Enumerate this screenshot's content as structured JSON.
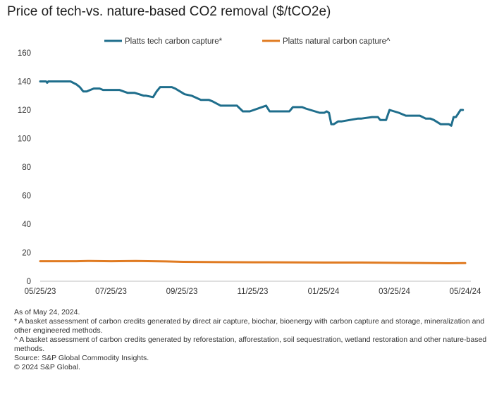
{
  "title": "Price of tech-vs. nature-based CO2 removal ($/tCO2e)",
  "chart_data": {
    "type": "line",
    "title": "Price of tech-vs. nature-based CO2 removal ($/tCO2e)",
    "xlabel": "",
    "ylabel": "",
    "x_ticks": [
      "05/25/23",
      "07/25/23",
      "09/25/23",
      "11/25/23",
      "01/25/24",
      "03/25/24",
      "05/24/24"
    ],
    "x_range": [
      "2023-05-25",
      "2024-05-24"
    ],
    "ylim": [
      0,
      160
    ],
    "y_ticks": [
      0,
      20,
      40,
      60,
      80,
      100,
      120,
      140,
      160
    ],
    "grid": false,
    "legend": "top-center",
    "series": [
      {
        "name": "Platts tech carbon capture*",
        "color": "#1f6e8c",
        "x": [
          "2023-05-25",
          "2023-05-30",
          "2023-05-31",
          "2023-06-01",
          "2023-06-20",
          "2023-06-25",
          "2023-06-28",
          "2023-07-01",
          "2023-07-04",
          "2023-07-07",
          "2023-07-10",
          "2023-07-15",
          "2023-07-18",
          "2023-08-01",
          "2023-08-08",
          "2023-08-12",
          "2023-08-14",
          "2023-08-18",
          "2023-08-22",
          "2023-08-24",
          "2023-08-30",
          "2023-09-02",
          "2023-09-05",
          "2023-09-15",
          "2023-09-18",
          "2023-09-26",
          "2023-10-02",
          "2023-10-10",
          "2023-10-17",
          "2023-10-20",
          "2023-10-27",
          "2023-11-05",
          "2023-11-10",
          "2023-11-15",
          "2023-11-19",
          "2023-11-21",
          "2023-12-05",
          "2023-12-08",
          "2023-12-25",
          "2023-12-28",
          "2024-01-02",
          "2024-01-05",
          "2024-01-08",
          "2024-01-20",
          "2024-01-24",
          "2024-01-26",
          "2024-01-28",
          "2024-01-30",
          "2024-02-01",
          "2024-02-05",
          "2024-02-08",
          "2024-02-22",
          "2024-02-25",
          "2024-03-05",
          "2024-03-10",
          "2024-03-12",
          "2024-03-17",
          "2024-03-20",
          "2024-03-28",
          "2024-04-03",
          "2024-04-15",
          "2024-04-20",
          "2024-04-24",
          "2024-04-27",
          "2024-05-03",
          "2024-05-04",
          "2024-05-06",
          "2024-05-10",
          "2024-05-12",
          "2024-05-14",
          "2024-05-16",
          "2024-05-20",
          "2024-05-22"
        ],
        "values": [
          140,
          140,
          139,
          140,
          140,
          138,
          136,
          133,
          133,
          134,
          135,
          135,
          134,
          134,
          132,
          132,
          132,
          131,
          130,
          130,
          129,
          133,
          136,
          136,
          135,
          131,
          130,
          127,
          127,
          126,
          123,
          123,
          123,
          119,
          119,
          119,
          123,
          119,
          119,
          122,
          122,
          122,
          121,
          118,
          118,
          119,
          118,
          110,
          110,
          112,
          112,
          114,
          114,
          115,
          115,
          113,
          113,
          120,
          118,
          116,
          116,
          114,
          114,
          113,
          110,
          110,
          110,
          110,
          109,
          115,
          115,
          120,
          120
        ]
      },
      {
        "name": "Platts natural carbon capture^",
        "color": "#e07b22",
        "x": [
          "2023-05-25",
          "2023-06-25",
          "2023-07-05",
          "2023-07-25",
          "2023-08-15",
          "2023-09-10",
          "2023-09-25",
          "2023-10-25",
          "2023-11-25",
          "2023-12-25",
          "2024-01-25",
          "2024-02-25",
          "2024-03-25",
          "2024-04-15",
          "2024-05-10",
          "2024-05-24"
        ],
        "values": [
          14,
          14,
          14.2,
          14,
          14.2,
          13.9,
          13.6,
          13.4,
          13.3,
          13.2,
          13.1,
          13.1,
          12.9,
          12.8,
          12.6,
          12.7
        ]
      }
    ]
  },
  "notes": {
    "as_of": "As of May 24, 2024.",
    "tech_note": "* A basket assessment of carbon credits generated by direct air capture, biochar, bioenergy with carbon capture and storage, mineralization and other engineered methods.",
    "nature_note": "^ A basket assessment of carbon credits generated by reforestation, afforestation, soil sequestration, wetland restoration and other nature-based methods.",
    "source": "Source: S&P Global Commodity Insights.",
    "copyright": "© 2024 S&P Global."
  }
}
